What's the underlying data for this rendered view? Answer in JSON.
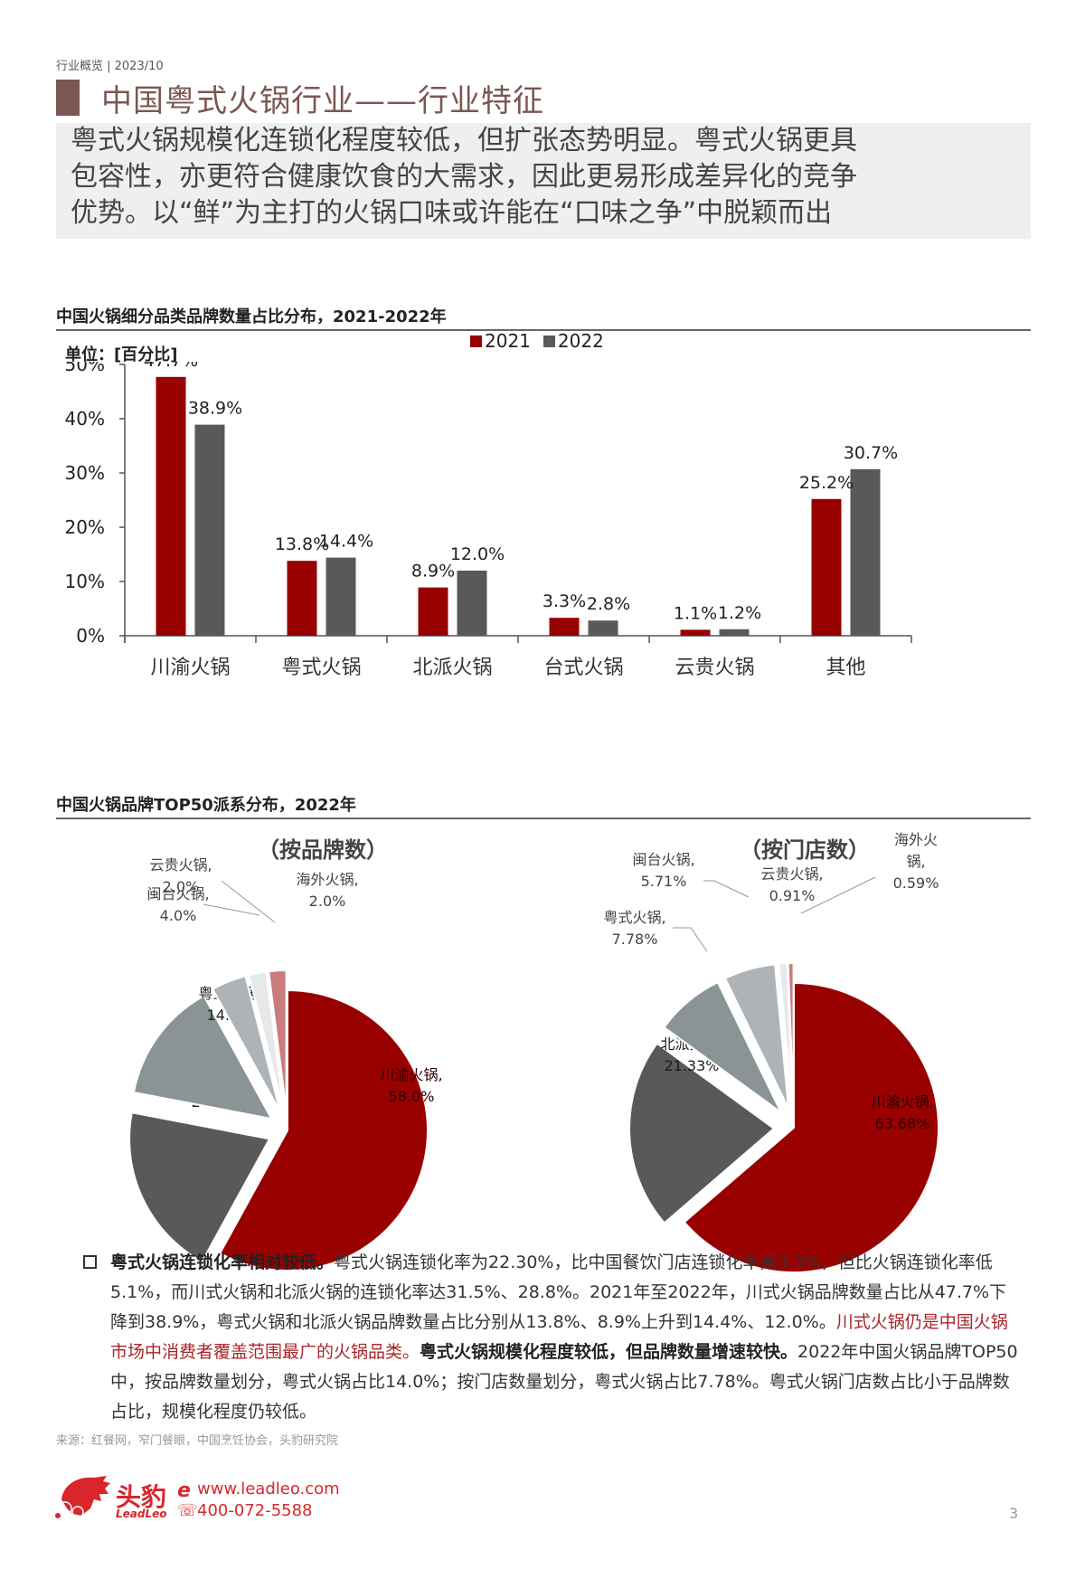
{
  "header": {
    "breadcrumb": "行业概览 | 2023/10",
    "title": "中国粤式火锅行业——行业特征"
  },
  "summary": {
    "lines": [
      "粤式火锅规模化连锁化程度较低，但扩张态势明显。粤式火锅更具",
      "包容性，亦更符合健康饮食的大需求，因此更易形成差异化的竞争",
      "优势。以“鲜”为主打的火锅口味或许能在“口味之争”中脱颖而出"
    ]
  },
  "colors": {
    "accent": "#7b5753",
    "series_2021": "#990000",
    "series_2022": "#595959",
    "brand_red": "#d8262c"
  },
  "chart1": {
    "section_title": "中国火锅细分品类品牌数量占比分布，2021-2022年",
    "unit": "单位：[百分比]"
  },
  "chart2": {
    "section_title": "中国火锅品牌TOP50派系分布，2022年"
  },
  "chart_data": [
    {
      "type": "bar",
      "title": "中国火锅细分品类品牌数量占比分布，2021-2022年",
      "xlabel": "",
      "ylabel": "单位：[百分比]",
      "categories": [
        "川渝火锅",
        "粤式火锅",
        "北派火锅",
        "台式火锅",
        "云贵火锅",
        "其他"
      ],
      "series": [
        {
          "name": "2021",
          "values": [
            47.7,
            13.8,
            8.9,
            3.3,
            1.1,
            25.2
          ],
          "labels": [
            "47.7%",
            "13.8%",
            "8.9%",
            "3.3%",
            "1.1%",
            "25.2%"
          ]
        },
        {
          "name": "2022",
          "values": [
            38.9,
            14.4,
            12.0,
            2.8,
            1.2,
            30.7
          ],
          "labels": [
            "38.9%",
            "14.4%",
            "12.0%",
            "2.8%",
            "1.2%",
            "30.7%"
          ]
        }
      ],
      "ylim": [
        0,
        50
      ],
      "yticks": [
        "0%",
        "10%",
        "20%",
        "30%",
        "40%",
        "50%"
      ],
      "legend": [
        "2021",
        "2022"
      ],
      "legend_position": "top",
      "grid": false
    },
    {
      "type": "pie",
      "title": "（按品牌数）",
      "slices": [
        {
          "label": "川渝火锅",
          "value": 58.0,
          "display": "58.0%"
        },
        {
          "label": "北派火锅",
          "value": 20.0,
          "display": "20.0%"
        },
        {
          "label": "粤式火锅",
          "value": 14.0,
          "display": "14.0%"
        },
        {
          "label": "闽台火锅",
          "value": 4.0,
          "display": "4.0%"
        },
        {
          "label": "云贵火锅",
          "value": 2.0,
          "display": "2.0%"
        },
        {
          "label": "海外火锅",
          "value": 2.0,
          "display": "2.0%"
        }
      ]
    },
    {
      "type": "pie",
      "title": "（按门店数）",
      "slices": [
        {
          "label": "川渝火锅",
          "value": 63.68,
          "display": "63.68%"
        },
        {
          "label": "北派火锅",
          "value": 21.33,
          "display": "21.33%"
        },
        {
          "label": "粤式火锅",
          "value": 7.78,
          "display": "7.78%"
        },
        {
          "label": "闽台火锅",
          "value": 5.71,
          "display": "5.71%"
        },
        {
          "label": "云贵火锅",
          "value": 0.91,
          "display": "0.91%"
        },
        {
          "label": "海外火锅",
          "value": 0.59,
          "display": "0.59%"
        }
      ]
    }
  ],
  "body": {
    "bold1": "粤式火锅连锁化率相对较低。",
    "text1": "粤式火锅连锁化率为22.30%，比中国餐饮门店连锁化率高3.3%，但比火锅连锁化率低5.1%，而川式火锅和北派火锅的连锁化率达31.5%、28.8%。2021年至2022年，川式火锅品牌数量占比从47.7%下降到38.9%，粤式火锅和北派火锅品牌数量占比分别从13.8%、8.9%上升到14.4%、12.0%。",
    "red1": "川式火锅仍是中国火锅市场中消费者覆盖范围最广的火锅品类。",
    "bold2": "粤式火锅规模化程度较低，但品牌数量增速较快。",
    "text2": "2022年中国火锅品牌TOP50中，按品牌数量划分，粤式火锅占比14.0%；按门店数量划分，粤式火锅占比7.78%。粤式火锅门店数占比小于品牌数占比，规模化程度仍较低。"
  },
  "footer": {
    "source": "来源：红餐网，窄门餐眼，中国烹饪协会，头豹研究院",
    "logo_cn": "头豹",
    "logo_en": "LeadLeo",
    "website": "www.leadleo.com",
    "phone": "400-072-5588",
    "page_number": "3"
  }
}
